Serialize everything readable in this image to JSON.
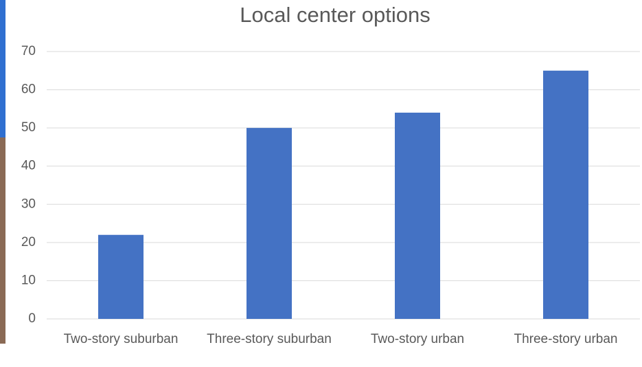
{
  "chart_data": {
    "type": "bar",
    "title": "Local center options",
    "categories": [
      "Two-story suburban",
      "Three-story suburban",
      "Two-story urban",
      "Three-story urban"
    ],
    "values": [
      22,
      50,
      54,
      65
    ],
    "color": "#4472c4",
    "ylim": [
      0,
      70
    ],
    "yticks": [
      0,
      10,
      20,
      30,
      40,
      50,
      60,
      70
    ],
    "grid": true
  }
}
